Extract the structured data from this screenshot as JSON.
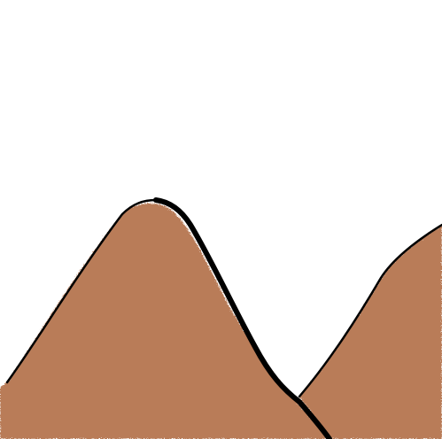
{
  "scene": {
    "background_color": "#ffffff",
    "fill_color": "#b97c58",
    "outline_color": "#000000",
    "speckle_color": "#e3c4b4"
  }
}
